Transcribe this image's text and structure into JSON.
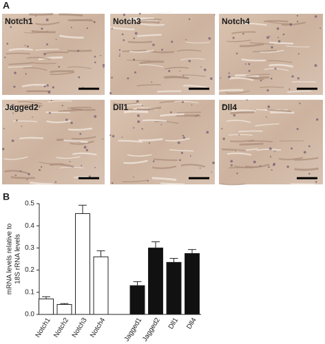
{
  "panel_a": {
    "letter": "A",
    "panels": [
      "Notch1",
      "Notch3",
      "Notch4",
      "Jagged2",
      "Dll1",
      "Dll4"
    ]
  },
  "panel_b": {
    "letter": "B"
  },
  "chart_data": {
    "type": "bar",
    "y_label": [
      "mRNA levels relative to",
      "18S rRNA levels"
    ],
    "categories": [
      "Notch1",
      "Notch2",
      "Notch3",
      "Notch4",
      "Jagged1",
      "Jagged2",
      "Dll1",
      "Dll4"
    ],
    "values": [
      0.07,
      0.045,
      0.455,
      0.26,
      0.13,
      0.3,
      0.235,
      0.275
    ],
    "errors": [
      0.01,
      0.004,
      0.038,
      0.027,
      0.018,
      0.028,
      0.018,
      0.018
    ],
    "colors": [
      "#ffffff",
      "#ffffff",
      "#ffffff",
      "#ffffff",
      "#111111",
      "#111111",
      "#111111",
      "#111111"
    ],
    "ylim": [
      0,
      0.5
    ],
    "yticks": [
      {
        "value": 0,
        "label": "0.0"
      },
      0.1,
      0.2,
      0.3,
      0.4,
      0.5
    ]
  }
}
